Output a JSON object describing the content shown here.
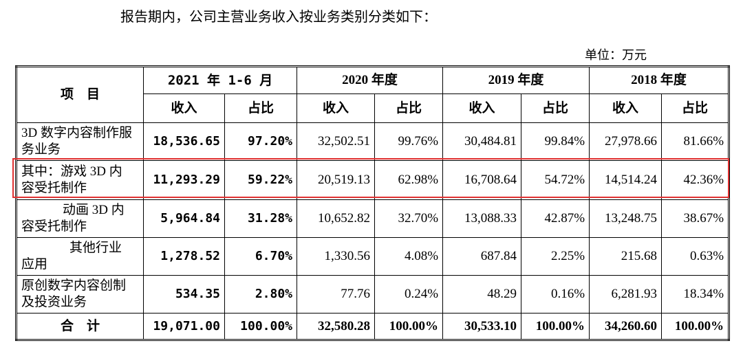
{
  "intro": "报告期内，公司主营业务收入按业务类别分类如下：",
  "unit": "单位：万元",
  "table": {
    "item_header": "项　目",
    "periods": [
      {
        "name": "2021 年 1-6 月",
        "sub": [
          "收入",
          "占比"
        ]
      },
      {
        "name": "2020 年度",
        "sub": [
          "收入",
          "占比"
        ]
      },
      {
        "name": "2019 年度",
        "sub": [
          "收入",
          "占比"
        ]
      },
      {
        "name": "2018 年度",
        "sub": [
          "收入",
          "占比"
        ]
      }
    ],
    "rows": [
      [
        "3D 数字内容制作服务业务",
        "18,536.65",
        "97.20%",
        "32,502.51",
        "99.76%",
        "30,484.81",
        "99.84%",
        "27,978.66",
        "81.66%"
      ],
      [
        "其中：游戏 3D 内容受托制作",
        "11,293.29",
        "59.22%",
        "20,519.13",
        "62.98%",
        "16,708.64",
        "54.72%",
        "14,514.24",
        "42.36%"
      ],
      [
        "动画 3D 内容受托制作",
        "5,964.84",
        "31.28%",
        "10,652.82",
        "32.70%",
        "13,088.33",
        "42.87%",
        "13,248.75",
        "38.67%"
      ],
      [
        "其他行业应用",
        "1,278.52",
        "6.70%",
        "1,330.56",
        "4.08%",
        "687.84",
        "2.25%",
        "215.68",
        "0.63%"
      ],
      [
        "原创数字内容创制及投资业务",
        "534.35",
        "2.80%",
        "77.76",
        "0.24%",
        "48.29",
        "0.16%",
        "6,281.93",
        "18.34%"
      ],
      [
        "合　计",
        "19,071.00",
        "100.00%",
        "32,580.28",
        "100.00%",
        "30,533.10",
        "100.00%",
        "34,260.60",
        "100.00%"
      ]
    ]
  }
}
